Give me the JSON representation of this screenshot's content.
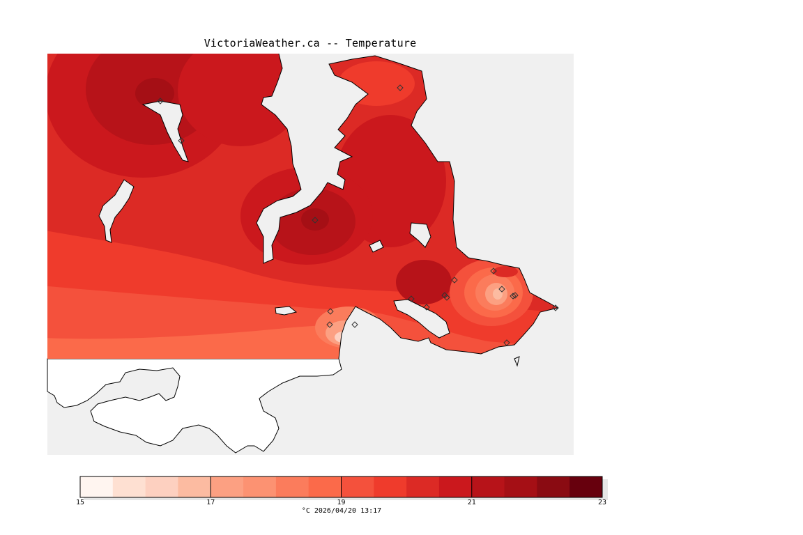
{
  "title": "VictoriaWeather.ca -- Temperature",
  "colorbar": {
    "colors": [
      "#fff5f0",
      "#fee0d2",
      "#fdd0c0",
      "#fcbba1",
      "#fca082",
      "#fc9272",
      "#fb7c5c",
      "#fb6a4a",
      "#f4513c",
      "#ef3b2c",
      "#dc2a25",
      "#cb181d",
      "#b71319",
      "#a50f15",
      "#8a0b12",
      "#67000d"
    ],
    "tick_labels": [
      "15",
      "17",
      "19",
      "21",
      "23"
    ],
    "min": 15,
    "max": 23,
    "units_label": "°C  2026/04/20 13:17"
  },
  "colors": {
    "water": "#f0f0f0",
    "nodata_land": "#ffffff",
    "coast": "#000000"
  }
}
